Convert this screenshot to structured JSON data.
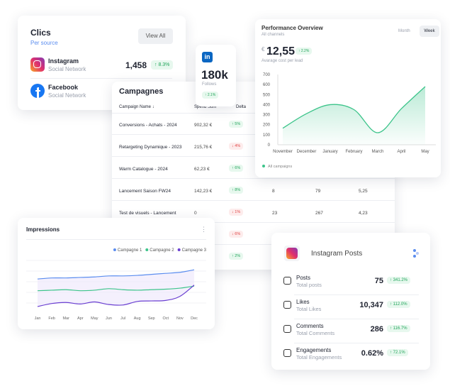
{
  "clics": {
    "title": "Clics",
    "subtitle": "Per source",
    "button": "View All",
    "sources": [
      {
        "name": "Instagram",
        "type": "Social Network",
        "value": "1,458",
        "delta": "↑ 8.3%"
      },
      {
        "name": "Facebook",
        "type": "Social Network"
      }
    ]
  },
  "linkedin": {
    "logo": "in",
    "value": "180k",
    "label": "Follows",
    "delta": "↑ 2.1%"
  },
  "performance": {
    "title": "Performance Overview",
    "subtitle": "All channels",
    "tabs": [
      "Month",
      "Week"
    ],
    "currency": "€",
    "value": "12,55",
    "delta": "↑ 2.2%",
    "caption": "Avarage cost per lead",
    "chart": {
      "type": "area",
      "categories": [
        "November",
        "December",
        "January",
        "February",
        "March",
        "April",
        "May"
      ],
      "values": [
        165,
        310,
        400,
        350,
        120,
        360,
        580
      ],
      "color": "#3cc48a",
      "ylim": [
        0,
        700
      ],
      "yticks": [
        0,
        100,
        200,
        300,
        400,
        500,
        600,
        700
      ],
      "legend": "All campaigns"
    }
  },
  "campagnes": {
    "title": "Campagnes",
    "columns": [
      "Campaign Name ↓",
      "Spend Sum",
      "Delta"
    ],
    "rows": [
      {
        "name": "Conversions - Achats - 2024",
        "spend": "902,32 €",
        "delta": "↑ 5%"
      },
      {
        "name": "Retargeting Dynamique - 2023",
        "spend": "215,76 €",
        "delta": "↓ 4%"
      },
      {
        "name": "Warm Catalogue - 2024",
        "spend": "62,23 €",
        "delta": "↑ 6%"
      },
      {
        "name": "Lancement Saison FW24",
        "spend": "142,23 €",
        "delta": "↑ 8%",
        "extra": [
          "8",
          "79",
          "5,25"
        ]
      },
      {
        "name": "Test de visuels - Lancement",
        "spend": "0",
        "delta": "↓ 1%",
        "extra": [
          "23",
          "267",
          "4,23"
        ]
      },
      {
        "delta": "↓ 6%"
      },
      {
        "delta": "↑ 2%"
      }
    ]
  },
  "impressions": {
    "title": "Impressions",
    "menu": "⋮",
    "chart": {
      "type": "line",
      "categories": [
        "Jan",
        "Feb",
        "Mar",
        "Apr",
        "May",
        "Jun",
        "Jul",
        "Aug",
        "Sep",
        "Oct",
        "Nov",
        "Dec"
      ],
      "ylim": [
        0,
        100
      ],
      "series": [
        {
          "name": "Campagne 1",
          "color": "#5b8def",
          "values": [
            54,
            56,
            56,
            57,
            58,
            60,
            60,
            61,
            63,
            65,
            67,
            72
          ]
        },
        {
          "name": "Campagne 2",
          "color": "#3cc48a",
          "values": [
            31,
            32,
            33,
            31,
            32,
            35,
            33,
            32,
            33,
            34,
            36,
            40
          ]
        },
        {
          "name": "Campagne 3",
          "color": "#6a3fd1",
          "values": [
            0,
            6,
            8,
            5,
            9,
            4,
            3,
            10,
            11,
            12,
            20,
            42
          ]
        }
      ]
    }
  },
  "instagram_posts": {
    "title": "Instagram Posts",
    "metrics": [
      {
        "label": "Posts",
        "sublabel": "Total posts",
        "value": "75",
        "delta": "↑ 341.2%"
      },
      {
        "label": "Likes",
        "sublabel": "Total Likes",
        "value": "10,347",
        "delta": "↑ 112.0%"
      },
      {
        "label": "Comments",
        "sublabel": "Total Comments",
        "value": "286",
        "delta": "↑ 116.7%"
      },
      {
        "label": "Engagements",
        "sublabel": "Total Engagements",
        "value": "0.62%",
        "delta": "↑ 72.1%"
      }
    ]
  }
}
